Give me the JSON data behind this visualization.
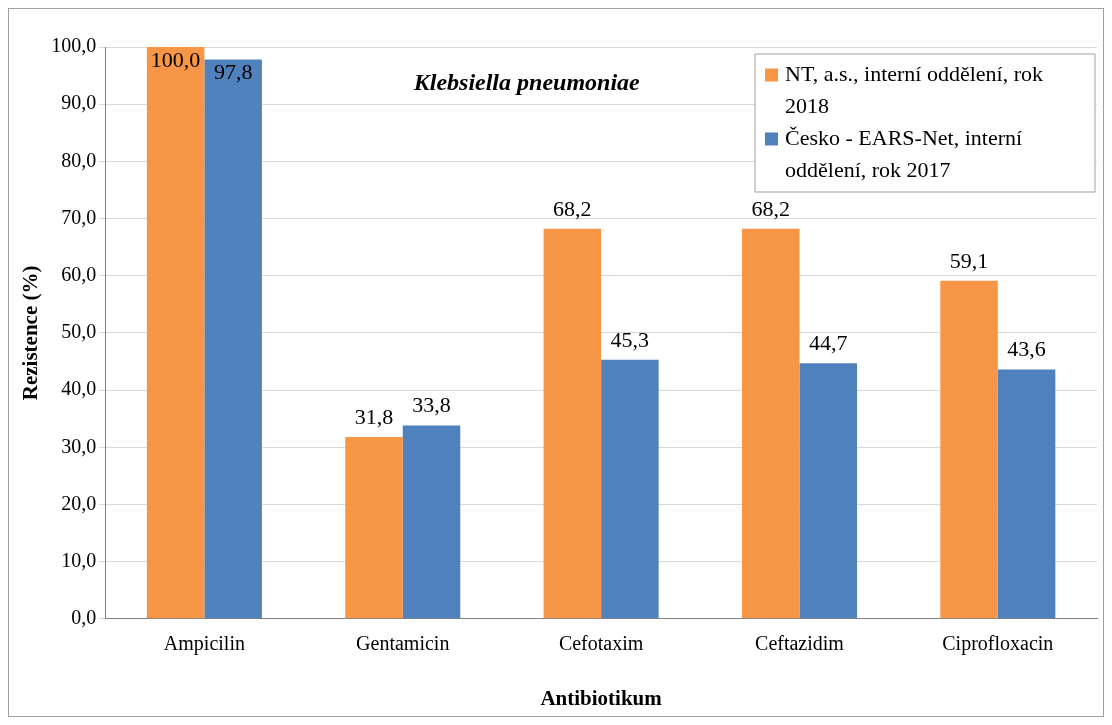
{
  "chart_data": {
    "type": "bar",
    "title": "Klebsiella pneumoniae",
    "xlabel": "Antibiotikum",
    "ylabel": "Rezistence (%)",
    "categories": [
      "Ampicilin",
      "Gentamicin",
      "Cefotaxim",
      "Ceftazidim",
      "Ciprofloxacin"
    ],
    "series": [
      {
        "name": "NT, a.s., interní oddělení, rok 2018",
        "color": "#f79646",
        "values": [
          100.0,
          31.8,
          68.2,
          68.2,
          59.1
        ],
        "value_labels": [
          "100,0",
          "31,8",
          "68,2",
          "68,2",
          "59,1"
        ]
      },
      {
        "name": "Česko - EARS-Net, interní oddělení, rok 2017",
        "color": "#4f81bd",
        "values": [
          97.8,
          33.8,
          45.3,
          44.7,
          43.6
        ],
        "value_labels": [
          "97,8",
          "33,8",
          "45,3",
          "44,7",
          "43,6"
        ]
      }
    ],
    "ylim": [
      0,
      100
    ],
    "yticks": [
      {
        "value": 0,
        "label": "0,0"
      },
      {
        "value": 10,
        "label": "10,0"
      },
      {
        "value": 20,
        "label": "20,0"
      },
      {
        "value": 30,
        "label": "30,0"
      },
      {
        "value": 40,
        "label": "40,0"
      },
      {
        "value": 50,
        "label": "50,0"
      },
      {
        "value": 60,
        "label": "60,0"
      },
      {
        "value": 70,
        "label": "70,0"
      },
      {
        "value": 80,
        "label": "80,0"
      },
      {
        "value": 90,
        "label": "90,0"
      },
      {
        "value": 100,
        "label": "100,0"
      }
    ],
    "grid": "y",
    "legend": "top right"
  }
}
